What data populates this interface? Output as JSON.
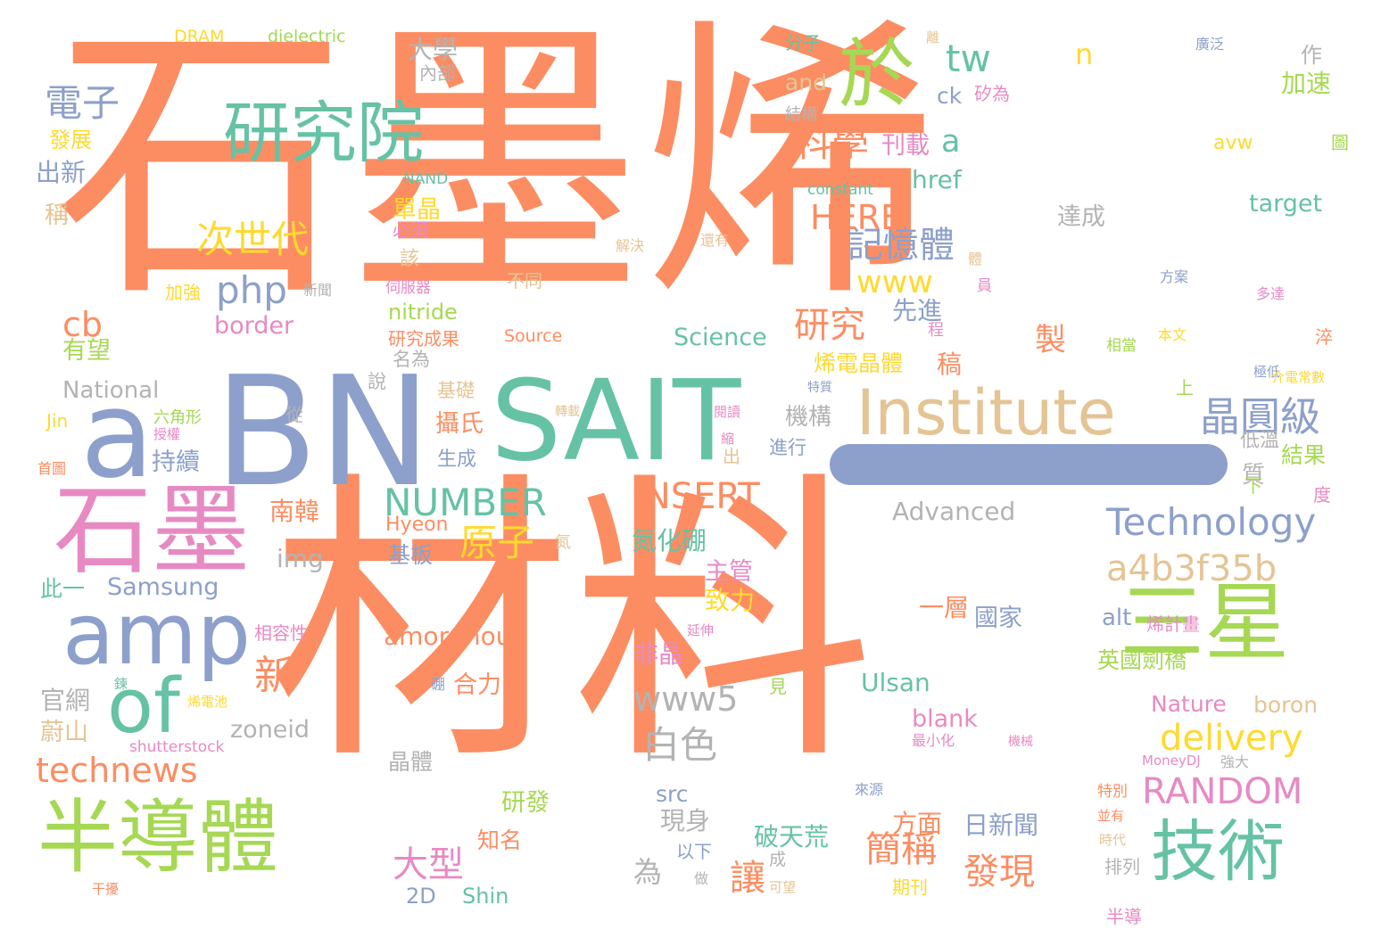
{
  "cloud": {
    "palette": {
      "orange": "#fc8d62",
      "teal": "#66c2a5",
      "blue": "#8da0cb",
      "pink": "#e78ac3",
      "green": "#a6d854",
      "yellow": "#ffd92f",
      "tan": "#e5c494",
      "gray": "#b3b3b3"
    },
    "words": [
      {
        "t": "石墨烯",
        "c": "#fc8d62"
      },
      {
        "t": "材料",
        "c": "#fc8d62"
      },
      {
        "t": "BN",
        "c": "#8da0cb"
      },
      {
        "t": "SAIT",
        "c": "#66c2a5"
      },
      {
        "t": "a",
        "c": "#8da0cb"
      },
      {
        "t": "石墨",
        "c": "#e78ac3"
      },
      {
        "t": "amp",
        "c": "#8da0cb"
      },
      {
        "t": "of",
        "c": "#66c2a5"
      },
      {
        "t": "半導體",
        "c": "#a6d854"
      },
      {
        "t": "研究院",
        "c": "#66c2a5"
      },
      {
        "t": "於",
        "c": "#a6d854"
      },
      {
        "t": "Institute",
        "c": "#e5c494"
      },
      {
        "t": "三星",
        "c": "#a6d854"
      },
      {
        "t": "技術",
        "c": "#66c2a5"
      },
      {
        "t": "Technology",
        "c": "#8da0cb"
      },
      {
        "t": "a4b3f35b",
        "c": "#e5c494"
      },
      {
        "t": "晶圓級",
        "c": "#8da0cb"
      },
      {
        "t": "RANDOM",
        "c": "#e78ac3"
      },
      {
        "t": "delivery",
        "c": "#ffd92f"
      },
      {
        "t": "NUMBER",
        "c": "#66c2a5"
      },
      {
        "t": "INSERT",
        "c": "#fc8d62"
      },
      {
        "t": "technews",
        "c": "#fc8d62"
      },
      {
        "t": "次世代",
        "c": "#ffd92f"
      },
      {
        "t": "php",
        "c": "#8da0cb"
      },
      {
        "t": "電子",
        "c": "#8da0cb"
      },
      {
        "t": "科學",
        "c": "#fc8d62"
      },
      {
        "t": "tw",
        "c": "#66c2a5"
      },
      {
        "t": "www",
        "c": "#ffd92f"
      },
      {
        "t": "記憶體",
        "c": "#8da0cb"
      },
      {
        "t": "研究",
        "c": "#fc8d62"
      },
      {
        "t": "HERE",
        "c": "#fc8d62"
      },
      {
        "t": "www5",
        "c": "#b3b3b3"
      },
      {
        "t": "白色",
        "c": "#b3b3b3"
      },
      {
        "t": "原子",
        "c": "#ffd92f"
      },
      {
        "t": "大型",
        "c": "#e78ac3"
      },
      {
        "t": "簡稱",
        "c": "#fc8d62"
      },
      {
        "t": "發現",
        "c": "#fc8d62"
      },
      {
        "t": "讓",
        "c": "#fc8d62"
      },
      {
        "t": "新",
        "c": "#fc8d62"
      },
      {
        "t": "cb",
        "c": "#fc8d62"
      },
      {
        "t": "n",
        "c": "#ffd92f"
      },
      {
        "t": "a",
        "c": "#66c2a5"
      },
      {
        "t": "href",
        "c": "#66c2a5"
      },
      {
        "t": "ck",
        "c": "#8da0cb"
      },
      {
        "t": "and",
        "c": "#e5c494"
      },
      {
        "t": "avw",
        "c": "#ffd92f"
      },
      {
        "t": "target",
        "c": "#66c2a5"
      },
      {
        "t": "Science",
        "c": "#66c2a5"
      },
      {
        "t": "Advanced",
        "c": "#b3b3b3"
      },
      {
        "t": "National",
        "c": "#b3b3b3"
      },
      {
        "t": "Samsung",
        "c": "#8da0cb"
      },
      {
        "t": "amorphous",
        "c": "#fc8d62"
      },
      {
        "t": "nitride",
        "c": "#a6d854"
      },
      {
        "t": "border",
        "c": "#e78ac3"
      },
      {
        "t": "img",
        "c": "#b3b3b3"
      },
      {
        "t": "zoneid",
        "c": "#b3b3b3"
      },
      {
        "t": "Ulsan",
        "c": "#66c2a5"
      },
      {
        "t": "blank",
        "c": "#e78ac3"
      },
      {
        "t": "Nature",
        "c": "#e78ac3"
      },
      {
        "t": "boron",
        "c": "#e5c494"
      },
      {
        "t": "alt",
        "c": "#8da0cb"
      },
      {
        "t": "src",
        "c": "#8da0cb"
      },
      {
        "t": "2D",
        "c": "#8da0cb"
      },
      {
        "t": "Shin",
        "c": "#66c2a5"
      },
      {
        "t": "Hyeon",
        "c": "#fc8d62"
      },
      {
        "t": "Jin",
        "c": "#ffd92f"
      },
      {
        "t": "Source",
        "c": "#fc8d62"
      },
      {
        "t": "DRAM",
        "c": "#ffd92f"
      },
      {
        "t": "dielectric",
        "c": "#a6d854"
      },
      {
        "t": "NAND",
        "c": "#66c2a5"
      },
      {
        "t": "constant",
        "c": "#66c2a5"
      },
      {
        "t": "shutterstock",
        "c": "#e78ac3"
      },
      {
        "t": "MoneyDJ",
        "c": "#e78ac3"
      },
      {
        "t": "加速",
        "c": "#a6d854"
      },
      {
        "t": "作",
        "c": "#b3b3b3"
      },
      {
        "t": "大學",
        "c": "#b3b3b3"
      },
      {
        "t": "內部",
        "c": "#b3b3b3"
      },
      {
        "t": "分子",
        "c": "#66c2a5"
      },
      {
        "t": "結構",
        "c": "#b3b3b3"
      },
      {
        "t": "刊載",
        "c": "#e78ac3"
      },
      {
        "t": "發展",
        "c": "#ffd92f"
      },
      {
        "t": "出新",
        "c": "#8da0cb"
      },
      {
        "t": "稱",
        "c": "#e5c494"
      },
      {
        "t": "有望",
        "c": "#a6d854"
      },
      {
        "t": "單晶",
        "c": "#ffd92f"
      },
      {
        "t": "必須",
        "c": "#e78ac3"
      },
      {
        "t": "該",
        "c": "#e5c494"
      },
      {
        "t": "先進",
        "c": "#8da0cb"
      },
      {
        "t": "製",
        "c": "#fc8d62"
      },
      {
        "t": "稿",
        "c": "#fc8d62"
      },
      {
        "t": "烯電晶體",
        "c": "#ffd92f"
      },
      {
        "t": "機構",
        "c": "#b3b3b3"
      },
      {
        "t": "進行",
        "c": "#8da0cb"
      },
      {
        "t": "攝氏",
        "c": "#fc8d62"
      },
      {
        "t": "生成",
        "c": "#8da0cb"
      },
      {
        "t": "持續",
        "c": "#8da0cb"
      },
      {
        "t": "研究成果",
        "c": "#fc8d62"
      },
      {
        "t": "名為",
        "c": "#b3b3b3"
      },
      {
        "t": "基礎",
        "c": "#e5c494"
      },
      {
        "t": "南韓",
        "c": "#fc8d62"
      },
      {
        "t": "氮化硼",
        "c": "#66c2a5"
      },
      {
        "t": "基板",
        "c": "#8da0cb"
      },
      {
        "t": "此一",
        "c": "#66c2a5"
      },
      {
        "t": "主管",
        "c": "#e78ac3"
      },
      {
        "t": "致力",
        "c": "#ffd92f"
      },
      {
        "t": "一層",
        "c": "#fc8d62"
      },
      {
        "t": "國家",
        "c": "#8da0cb"
      },
      {
        "t": "非晶",
        "c": "#e78ac3"
      },
      {
        "t": "合力",
        "c": "#fc8d62"
      },
      {
        "t": "官網",
        "c": "#b3b3b3"
      },
      {
        "t": "蔚山",
        "c": "#e5c494"
      },
      {
        "t": "研發",
        "c": "#a6d854"
      },
      {
        "t": "知名",
        "c": "#fc8d62"
      },
      {
        "t": "現身",
        "c": "#b3b3b3"
      },
      {
        "t": "以下",
        "c": "#8da0cb"
      },
      {
        "t": "破天荒",
        "c": "#66c2a5"
      },
      {
        "t": "方面",
        "c": "#fc8d62"
      },
      {
        "t": "日新聞",
        "c": "#8da0cb"
      },
      {
        "t": "期刊",
        "c": "#ffd92f"
      },
      {
        "t": "為",
        "c": "#b3b3b3"
      },
      {
        "t": "晶體",
        "c": "#b3b3b3"
      },
      {
        "t": "英國劍橋",
        "c": "#a6d854"
      },
      {
        "t": "結果",
        "c": "#a6d854"
      },
      {
        "t": "低溫",
        "c": "#b3b3b3"
      },
      {
        "t": "達成",
        "c": "#b3b3b3"
      },
      {
        "t": "特別",
        "c": "#fc8d62"
      },
      {
        "t": "排列",
        "c": "#b3b3b3"
      },
      {
        "t": "半導",
        "c": "#e78ac3"
      },
      {
        "t": "烯計畫",
        "c": "#e78ac3"
      },
      {
        "t": "相容性",
        "c": "#e78ac3"
      },
      {
        "t": "加強",
        "c": "#ffd92f"
      },
      {
        "t": "新聞",
        "c": "#b3b3b3"
      },
      {
        "t": "不同",
        "c": "#e5c494"
      },
      {
        "t": "解決",
        "c": "#e5c494"
      },
      {
        "t": "還有",
        "c": "#e5c494"
      },
      {
        "t": "伺服器",
        "c": "#e78ac3"
      },
      {
        "t": "矽為",
        "c": "#e78ac3"
      },
      {
        "t": "廣泛",
        "c": "#8da0cb"
      },
      {
        "t": "方案",
        "c": "#8da0cb"
      },
      {
        "t": "多達",
        "c": "#e78ac3"
      },
      {
        "t": "本文",
        "c": "#ffd92f"
      },
      {
        "t": "相當",
        "c": "#a6d854"
      },
      {
        "t": "極低",
        "c": "#8da0cb"
      },
      {
        "t": "介電常數",
        "c": "#ffd92f"
      },
      {
        "t": "特質",
        "c": "#8da0cb"
      },
      {
        "t": "閱讀",
        "c": "#e78ac3"
      },
      {
        "t": "縮",
        "c": "#e78ac3"
      },
      {
        "t": "轉載",
        "c": "#e5c494"
      },
      {
        "t": "六角形",
        "c": "#a6d854"
      },
      {
        "t": "授權",
        "c": "#e78ac3"
      },
      {
        "t": "首圖",
        "c": "#fc8d62"
      },
      {
        "t": "氮",
        "c": "#e5c494"
      },
      {
        "t": "延伸",
        "c": "#e78ac3"
      },
      {
        "t": "硼",
        "c": "#8da0cb"
      },
      {
        "t": "見",
        "c": "#a6d854"
      },
      {
        "t": "鍊",
        "c": "#66c2a5"
      },
      {
        "t": "烯電池",
        "c": "#ffd92f"
      },
      {
        "t": "最小化",
        "c": "#e78ac3"
      },
      {
        "t": "機械",
        "c": "#e78ac3"
      },
      {
        "t": "強大",
        "c": "#b3b3b3"
      },
      {
        "t": "來源",
        "c": "#8da0cb"
      },
      {
        "t": "做",
        "c": "#b3b3b3"
      },
      {
        "t": "可望",
        "c": "#e5c494"
      },
      {
        "t": "干擾",
        "c": "#fc8d62"
      },
      {
        "t": "時代",
        "c": "#e5c494"
      },
      {
        "t": "並有",
        "c": "#fc8d62"
      },
      {
        "t": "成",
        "c": "#b3b3b3"
      },
      {
        "t": "說",
        "c": "#b3b3b3"
      },
      {
        "t": "質",
        "c": "#b3b3b3"
      },
      {
        "t": "度",
        "c": "#e78ac3"
      },
      {
        "t": "下",
        "c": "#a6d854"
      },
      {
        "t": "上",
        "c": "#a6d854"
      },
      {
        "t": "淬",
        "c": "#fc8d62"
      },
      {
        "t": "圖",
        "c": "#a6d854"
      },
      {
        "t": "離",
        "c": "#e5c494"
      },
      {
        "t": "體",
        "c": "#e5c494"
      },
      {
        "t": "員",
        "c": "#e78ac3"
      },
      {
        "t": "程",
        "c": "#e78ac3"
      },
      {
        "t": "從",
        "c": "#b3b3b3"
      },
      {
        "t": "出",
        "c": "#e5c494"
      }
    ]
  }
}
